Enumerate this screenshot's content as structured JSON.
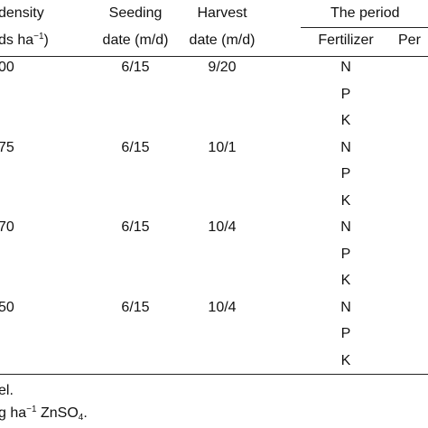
{
  "header": {
    "row1": [
      "density",
      "Seeding",
      "Harvest",
      "The period"
    ],
    "row2": {
      "col1": {
        "text": "ds ha",
        "superscript": "−1",
        "tail": ")"
      },
      "seeding": "date (m/d)",
      "harvest": "date (m/d)",
      "fertilizer": "Fertilizer",
      "next": "Per"
    }
  },
  "rows": [
    {
      "density": "00",
      "seeding": "6/15",
      "harvest": "9/20",
      "fertilizers": [
        "N",
        "P",
        "K"
      ]
    },
    {
      "density": "75",
      "seeding": "6/15",
      "harvest": "10/1",
      "fertilizers": [
        "N",
        "P",
        "K"
      ]
    },
    {
      "density": "70",
      "seeding": "6/15",
      "harvest": "10/4",
      "fertilizers": [
        "N",
        "P",
        "K"
      ]
    },
    {
      "density": "50",
      "seeding": "6/15",
      "harvest": "10/4",
      "fertilizers": [
        "N",
        "P",
        "K"
      ]
    }
  ],
  "footnotes": [
    {
      "text": "el."
    },
    {
      "text": "g ha",
      "superscript": "−1",
      "text2": " ZnSO",
      "subscript": "4",
      "text3": "."
    }
  ]
}
